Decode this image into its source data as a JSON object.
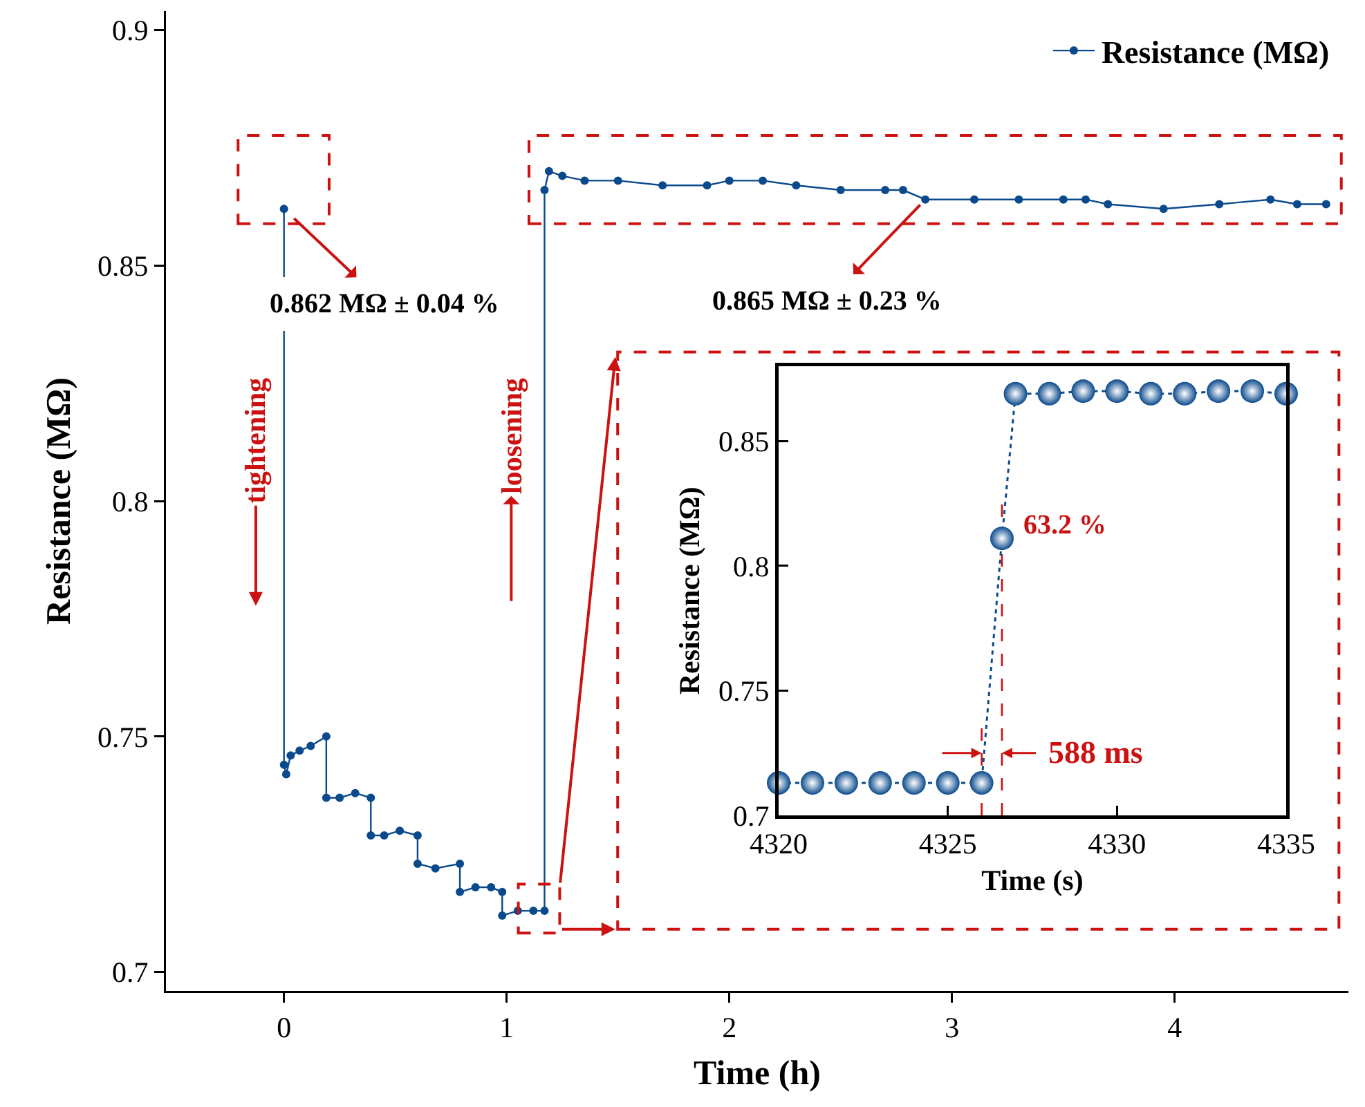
{
  "chart_data": [
    {
      "type": "line",
      "xlabel": "Time (h)",
      "ylabel": "Resistance (MΩ)",
      "xlim": [
        -0.53,
        4.78
      ],
      "xticks": [
        0,
        1,
        2,
        3,
        4
      ],
      "ylim": [
        0.696,
        0.904
      ],
      "yticks": [
        0.7,
        0.75,
        0.8,
        0.85,
        0.9
      ],
      "grid": false,
      "legend": "top right",
      "marker": "circle",
      "line_style": "solid",
      "x": [
        0,
        0,
        0.01,
        0.03,
        0.07,
        0.12,
        0.19,
        0.19,
        0.25,
        0.32,
        0.39,
        0.39,
        0.45,
        0.52,
        0.6,
        0.6,
        0.68,
        0.79,
        0.79,
        0.86,
        0.93,
        0.98,
        0.98,
        1.05,
        1.12,
        1.17,
        1.17,
        1.19,
        1.25,
        1.35,
        1.5,
        1.7,
        1.9,
        2.0,
        2.15,
        2.3,
        2.5,
        2.7,
        2.78,
        2.88,
        3.1,
        3.3,
        3.5,
        3.6,
        3.7,
        3.95,
        4.2,
        4.43,
        4.55,
        4.68
      ],
      "series": [
        {
          "name": "Resistance (MΩ)",
          "color": "#0a4a8c",
          "values": [
            0.862,
            0.744,
            0.742,
            0.746,
            0.747,
            0.748,
            0.75,
            0.737,
            0.737,
            0.738,
            0.737,
            0.729,
            0.729,
            0.73,
            0.729,
            0.723,
            0.722,
            0.723,
            0.717,
            0.718,
            0.718,
            0.717,
            0.712,
            0.713,
            0.713,
            0.713,
            0.866,
            0.87,
            0.869,
            0.868,
            0.868,
            0.867,
            0.867,
            0.868,
            0.868,
            0.867,
            0.866,
            0.866,
            0.866,
            0.864,
            0.864,
            0.864,
            0.864,
            0.864,
            0.863,
            0.862,
            0.863,
            0.864,
            0.863,
            0.863
          ]
        }
      ],
      "annotations": [
        {
          "text": "0.862 MΩ ± 0.04 %",
          "x": 0,
          "y": 0.862
        },
        {
          "text": "0.865 MΩ ± 0.23 %",
          "x": 2.9,
          "y": 0.865
        },
        "tightening",
        "loosening"
      ]
    },
    {
      "type": "line",
      "xlabel": "Time (s)",
      "ylabel": "Resistance (MΩ)",
      "xlim": [
        4320,
        4335
      ],
      "xticks": [
        4320,
        4325,
        4330,
        4335
      ],
      "ylim": [
        0.7,
        0.88
      ],
      "yticks": [
        0.7,
        0.75,
        0.8,
        0.85
      ],
      "grid": false,
      "marker": "circle",
      "line_style": "dotted",
      "x": [
        4320,
        4321,
        4322,
        4323,
        4324,
        4325,
        4326,
        4326.6,
        4327,
        4328,
        4329,
        4330,
        4331,
        4332,
        4333,
        4334,
        4335
      ],
      "series": [
        {
          "color": "#0a4a8c",
          "values": [
            0.713,
            0.713,
            0.713,
            0.713,
            0.713,
            0.713,
            0.713,
            0.811,
            0.869,
            0.869,
            0.87,
            0.87,
            0.869,
            0.869,
            0.87,
            0.87,
            0.869
          ]
        }
      ],
      "ref_lines": [
        {
          "axis": "x",
          "value": 4326,
          "color": "#cc1111",
          "line_style": "dashed"
        },
        {
          "axis": "x",
          "value": 4326.6,
          "color": "#cc1111",
          "line_style": "dashed"
        }
      ],
      "annotations": [
        {
          "text": "63.2 %",
          "x": 4326.6,
          "y": 0.811
        },
        {
          "text": "588 ms",
          "x": 4326.6,
          "y": 0.725
        }
      ]
    }
  ]
}
